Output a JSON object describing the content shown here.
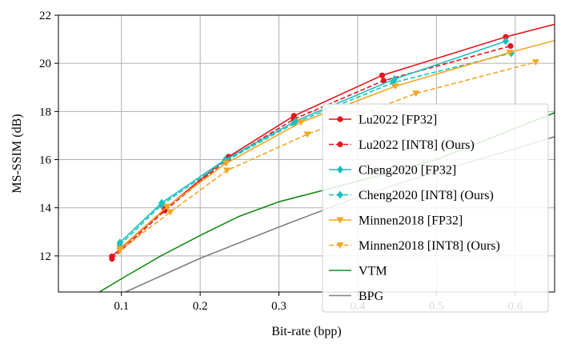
{
  "chart_data": {
    "type": "line",
    "title": "",
    "xlabel": "Bit-rate (bpp)",
    "ylabel": "MS-SSIM (dB)",
    "xlim": [
      0.02,
      0.65
    ],
    "ylim": [
      10.5,
      22
    ],
    "xticks": [
      "0.1",
      "0.2",
      "0.3",
      "0.4",
      "0.5",
      "0.6"
    ],
    "xtick_values": [
      0.1,
      0.2,
      0.3,
      0.4,
      0.5,
      0.6
    ],
    "yticks": [
      "12",
      "14",
      "16",
      "18",
      "20",
      "22"
    ],
    "ytick_values": [
      12,
      14,
      16,
      18,
      20,
      22
    ],
    "grid": true,
    "legend_position": "lower-right",
    "series": [
      {
        "name": "Lu2022 [FP32]",
        "color": "#e8141c",
        "dash": "solid",
        "marker": "circle",
        "points": [
          [
            0.088,
            11.98
          ],
          [
            0.155,
            13.95
          ],
          [
            0.236,
            16.12
          ],
          [
            0.319,
            17.82
          ],
          [
            0.431,
            19.5
          ],
          [
            0.588,
            21.1
          ]
        ],
        "curve": [
          [
            0.088,
            11.98
          ],
          [
            0.155,
            13.95
          ],
          [
            0.236,
            16.12
          ],
          [
            0.319,
            17.82
          ],
          [
            0.431,
            19.5
          ],
          [
            0.588,
            21.1
          ],
          [
            0.65,
            21.62
          ]
        ]
      },
      {
        "name": "Lu2022 [INT8] (Ours)",
        "color": "#e8141c",
        "dash": "dashed",
        "marker": "circle",
        "points": [
          [
            0.088,
            11.88
          ],
          [
            0.155,
            13.88
          ],
          [
            0.235,
            16.02
          ],
          [
            0.319,
            17.68
          ],
          [
            0.433,
            19.28
          ],
          [
            0.594,
            20.72
          ]
        ],
        "curve": [
          [
            0.088,
            11.88
          ],
          [
            0.155,
            13.88
          ],
          [
            0.235,
            16.02
          ],
          [
            0.319,
            17.68
          ],
          [
            0.433,
            19.28
          ],
          [
            0.594,
            20.72
          ]
        ]
      },
      {
        "name": "Cheng2020 [FP32]",
        "color": "#19bfbf",
        "dash": "solid",
        "marker": "diamond",
        "points": [
          [
            0.098,
            12.55
          ],
          [
            0.151,
            14.2
          ],
          [
            0.232,
            16.0
          ],
          [
            0.321,
            17.6
          ],
          [
            0.447,
            19.35
          ],
          [
            0.588,
            20.92
          ]
        ],
        "curve": [
          [
            0.098,
            12.55
          ],
          [
            0.151,
            14.2
          ],
          [
            0.232,
            16.0
          ],
          [
            0.321,
            17.6
          ],
          [
            0.447,
            19.35
          ],
          [
            0.588,
            20.92
          ]
        ]
      },
      {
        "name": "Cheng2020 [INT8] (Ours)",
        "color": "#19bfbf",
        "dash": "dashed",
        "marker": "diamond",
        "points": [
          [
            0.098,
            12.45
          ],
          [
            0.151,
            14.12
          ],
          [
            0.231,
            15.92
          ],
          [
            0.319,
            17.5
          ],
          [
            0.445,
            19.2
          ],
          [
            0.595,
            20.42
          ]
        ],
        "curve": [
          [
            0.098,
            12.45
          ],
          [
            0.151,
            14.12
          ],
          [
            0.231,
            15.92
          ],
          [
            0.319,
            17.5
          ],
          [
            0.445,
            19.2
          ],
          [
            0.595,
            20.42
          ]
        ]
      },
      {
        "name": "Minnen2018 [FP32]",
        "color": "#f5a623",
        "dash": "solid",
        "marker": "triangle-down",
        "points": [
          [
            0.098,
            12.3
          ],
          [
            0.158,
            14.05
          ],
          [
            0.233,
            15.85
          ],
          [
            0.328,
            17.55
          ],
          [
            0.448,
            19.05
          ],
          [
            0.593,
            20.45
          ]
        ],
        "curve": [
          [
            0.098,
            12.3
          ],
          [
            0.158,
            14.05
          ],
          [
            0.233,
            15.85
          ],
          [
            0.328,
            17.55
          ],
          [
            0.448,
            19.05
          ],
          [
            0.593,
            20.45
          ],
          [
            0.65,
            20.95
          ]
        ]
      },
      {
        "name": "Minnen2018 [INT8] (Ours)",
        "color": "#f5a623",
        "dash": "dashed",
        "marker": "triangle-down",
        "points": [
          [
            0.098,
            12.22
          ],
          [
            0.162,
            13.82
          ],
          [
            0.234,
            15.55
          ],
          [
            0.336,
            17.05
          ],
          [
            0.474,
            18.75
          ],
          [
            0.626,
            20.05
          ]
        ],
        "curve": [
          [
            0.098,
            12.22
          ],
          [
            0.162,
            13.82
          ],
          [
            0.234,
            15.55
          ],
          [
            0.336,
            17.05
          ],
          [
            0.474,
            18.75
          ],
          [
            0.626,
            20.05
          ]
        ]
      },
      {
        "name": "VTM",
        "color": "#138a13",
        "dash": "solid",
        "marker": "none",
        "points": [],
        "curve": [
          [
            0.072,
            10.5
          ],
          [
            0.1,
            11.05
          ],
          [
            0.15,
            12.0
          ],
          [
            0.2,
            12.85
          ],
          [
            0.25,
            13.65
          ],
          [
            0.3,
            14.25
          ],
          [
            0.4,
            15.1
          ],
          [
            0.5,
            16.0
          ],
          [
            0.6,
            17.3
          ],
          [
            0.65,
            17.95
          ]
        ]
      },
      {
        "name": "BPG",
        "color": "#808080",
        "dash": "solid",
        "marker": "none",
        "points": [],
        "curve": [
          [
            0.105,
            10.5
          ],
          [
            0.2,
            11.9
          ],
          [
            0.3,
            13.2
          ],
          [
            0.4,
            14.45
          ],
          [
            0.5,
            15.5
          ],
          [
            0.6,
            16.45
          ],
          [
            0.65,
            16.95
          ]
        ]
      }
    ]
  }
}
